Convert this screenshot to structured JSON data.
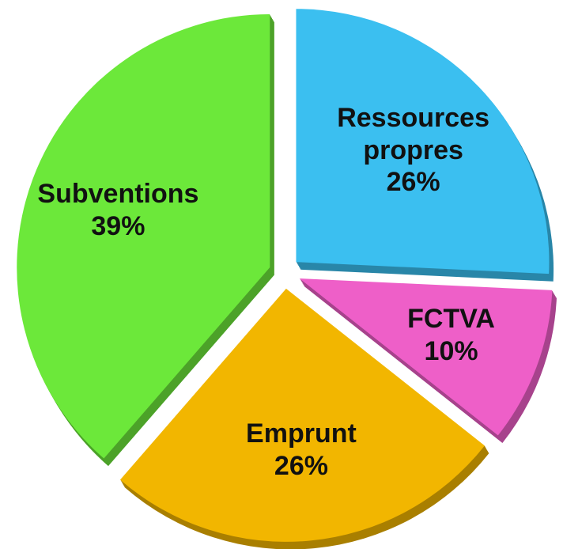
{
  "chart_data": {
    "type": "pie",
    "categories": [
      "Ressources propres",
      "FCTVA",
      "Emprunt",
      "Subventions"
    ],
    "values": [
      26,
      10,
      26,
      39
    ],
    "value_labels": [
      "26%",
      "10%",
      "26%",
      "39%"
    ],
    "colors": [
      "#3bbff0",
      "#ee5fc8",
      "#f2b600",
      "#6ce83a"
    ],
    "explode": true
  }
}
